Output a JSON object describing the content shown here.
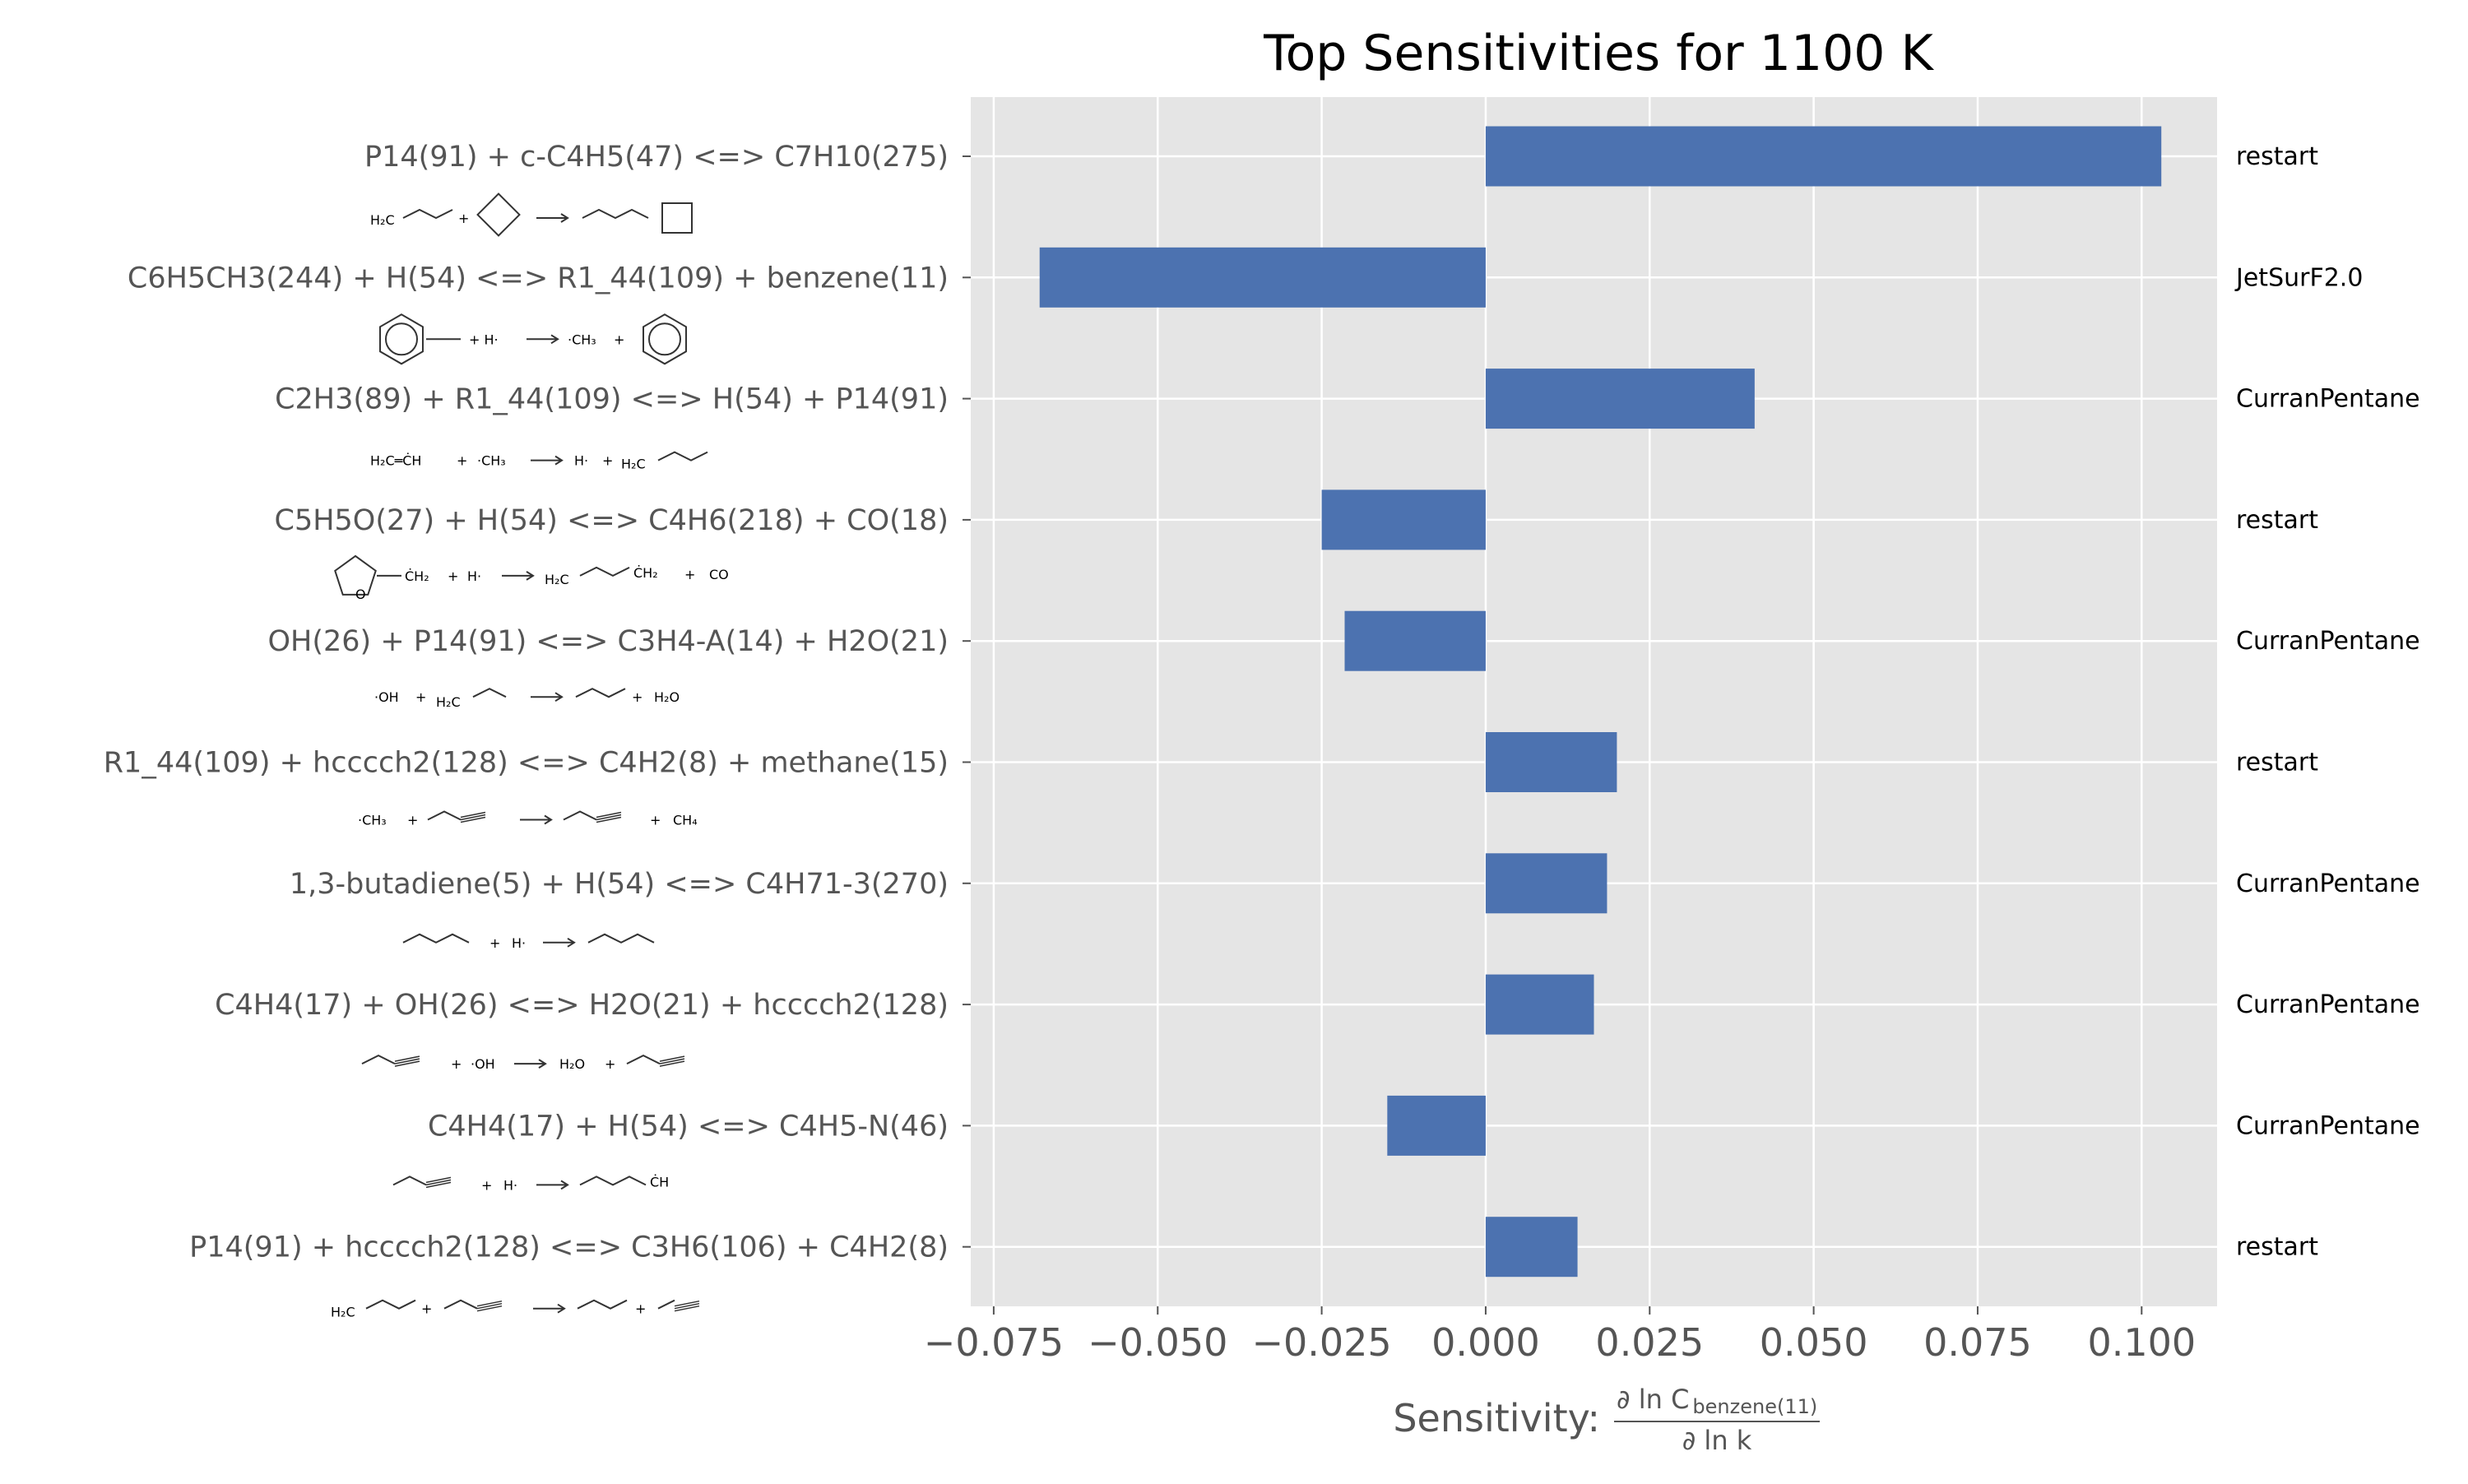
{
  "chart_data": {
    "type": "bar",
    "orientation": "horizontal",
    "title": "Top Sensitivities for 1100 K",
    "xlabel_prefix": "Sensitivity: ",
    "xlabel_numerator": "∂ ln C",
    "xlabel_numerator_sub": "benzene(11)",
    "xlabel_denominator": "∂ ln k",
    "xlim": [
      -0.0785,
      0.1115
    ],
    "xticks": [
      -0.075,
      -0.05,
      -0.025,
      0.0,
      0.025,
      0.05,
      0.075,
      0.1
    ],
    "xtick_labels": [
      "−0.075",
      "−0.050",
      "−0.025",
      "0.000",
      "0.025",
      "0.050",
      "0.075",
      "0.100"
    ],
    "grid": true,
    "bar_color": "#4c72b0",
    "background_color": "#e5e5e5",
    "categories": [
      "P14(91) + c-C4H5(47) <=> C7H10(275)",
      "C6H5CH3(244) + H(54) <=> R1_44(109) + benzene(11)",
      "C2H3(89) + R1_44(109) <=> H(54) + P14(91)",
      "C5H5O(27) + H(54) <=> C4H6(218) + CO(18)",
      "OH(26) + P14(91) <=> C3H4-A(14) + H2O(21)",
      "R1_44(109) + hcccch2(128) <=> C4H2(8) + methane(15)",
      "1,3-butadiene(5) + H(54) <=> C4H71-3(270)",
      "C4H4(17) + OH(26) <=> H2O(21) + hcccch2(128)",
      "C4H4(17) + H(54) <=> C4H5-N(46)",
      "P14(91) + hcccch2(128) <=> C3H6(106) + C4H2(8)"
    ],
    "values": [
      0.103,
      -0.068,
      0.041,
      -0.025,
      -0.0215,
      0.02,
      0.0185,
      0.0165,
      -0.015,
      0.014
    ],
    "sources": [
      "restart",
      "JetSurF2.0",
      "CurranPentane",
      "restart",
      "CurranPentane",
      "restart",
      "CurranPentane",
      "CurranPentane",
      "CurranPentane",
      "restart"
    ]
  },
  "structure_glyphs": [
    [
      "H₂C",
      "+",
      "→"
    ],
    [
      "+ H·",
      "→",
      "·CH₃",
      "+"
    ],
    [
      "H₂C═ĊH",
      "+",
      "·CH₃",
      "→",
      "H·",
      "+",
      "H₂C"
    ],
    [
      "ĊH₂",
      "+",
      "H·",
      "→",
      "H₂C",
      "ĊH₂",
      "+",
      "CO",
      "O"
    ],
    [
      "·OH",
      "+",
      "H₂C",
      "→",
      "+",
      "H₂O"
    ],
    [
      "·CH₃",
      "+",
      "→",
      "+",
      "CH₄"
    ],
    [
      "+",
      "H·",
      "→"
    ],
    [
      "+",
      "·OH",
      "→",
      "H₂O",
      "+"
    ],
    [
      "+",
      "H·",
      "→",
      "ĊH"
    ],
    [
      "H₂C",
      "+",
      "→",
      "+"
    ]
  ],
  "colors": {
    "text": "#555555",
    "title": "#000000",
    "grid": "#ffffff",
    "red": "#e8141c",
    "ink": "#333333"
  }
}
